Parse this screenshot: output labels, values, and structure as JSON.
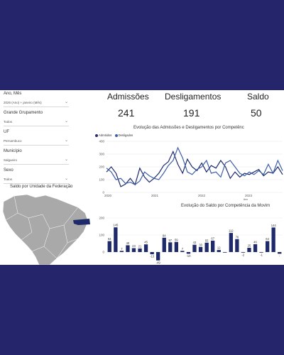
{
  "colors": {
    "frame": "#25256b",
    "series_admitidos": "#1f2a6b",
    "series_desligados": "#3d5fa8",
    "bar": "#1f2a6b",
    "map_land": "#a9a9a9",
    "map_highlight": "#1f2a6b"
  },
  "filters": [
    {
      "label": "Ano, Mês",
      "value": "2026 (Ano) + janeiro (Mês)"
    },
    {
      "label": "Grande Grupamento",
      "value": "Todos"
    },
    {
      "label": "UF",
      "value": "Pernambuco"
    },
    {
      "label": "Município",
      "value": "Salgueiro"
    },
    {
      "label": "Sexo",
      "value": "Todos"
    }
  ],
  "map": {
    "title": "Saldo por Unidade da Federação"
  },
  "kpis": [
    {
      "label": "Admissões",
      "value": "241"
    },
    {
      "label": "Desligamentos",
      "value": "191"
    },
    {
      "label": "Saldo",
      "value": "50"
    }
  ],
  "chart_data": [
    {
      "type": "line",
      "title": "Evolução das Admissões e Desligamentos por Competênc",
      "xlabel": "Ano",
      "ylabel": "",
      "legend": "top-left",
      "x_ticks": [
        "2020",
        "2021",
        "2022",
        "2023"
      ],
      "y_ticks": [
        "0",
        "100",
        "200",
        "300",
        "400"
      ],
      "ylim": [
        0,
        400
      ],
      "series": [
        {
          "name": "Admitidos",
          "values": [
            160,
            200,
            150,
            45,
            65,
            110,
            60,
            190,
            120,
            80,
            110,
            150,
            210,
            240,
            320,
            220,
            150,
            260,
            200,
            170,
            230,
            160,
            210,
            190,
            250,
            200,
            110,
            160,
            120,
            150,
            140,
            160,
            180,
            130,
            160,
            150,
            200,
            140
          ]
        },
        {
          "name": "Desligados",
          "values": [
            190,
            160,
            100,
            110,
            70,
            80,
            60,
            90,
            160,
            130,
            110,
            100,
            150,
            210,
            250,
            350,
            270,
            160,
            140,
            180,
            200,
            250,
            150,
            160,
            120,
            230,
            250,
            200,
            150,
            130,
            160,
            140,
            170,
            140,
            220,
            150,
            250,
            170
          ]
        }
      ]
    },
    {
      "type": "bar",
      "title": "Evolução do Saldo por Competência da Movim",
      "ylim": [
        -50,
        200
      ],
      "y_ticks": [
        "0",
        "100",
        "200"
      ],
      "values": [
        64,
        145,
        7,
        40,
        23,
        21,
        45,
        -13,
        -49,
        84,
        57,
        59,
        7,
        -10,
        43,
        30,
        55,
        67,
        12,
        0,
        112,
        76,
        -2,
        25,
        46,
        -1,
        64,
        144,
        -10
      ],
      "labels": [
        "64",
        "145",
        "7",
        "40",
        "23",
        "21",
        "45",
        "-13",
        "-49",
        "84",
        "57",
        "59",
        "7",
        "-10",
        "43",
        "30",
        "55",
        "67",
        "12",
        "",
        "112",
        "76",
        "-2",
        "25",
        "46",
        "-1",
        "64",
        "144",
        "-"
      ]
    }
  ]
}
